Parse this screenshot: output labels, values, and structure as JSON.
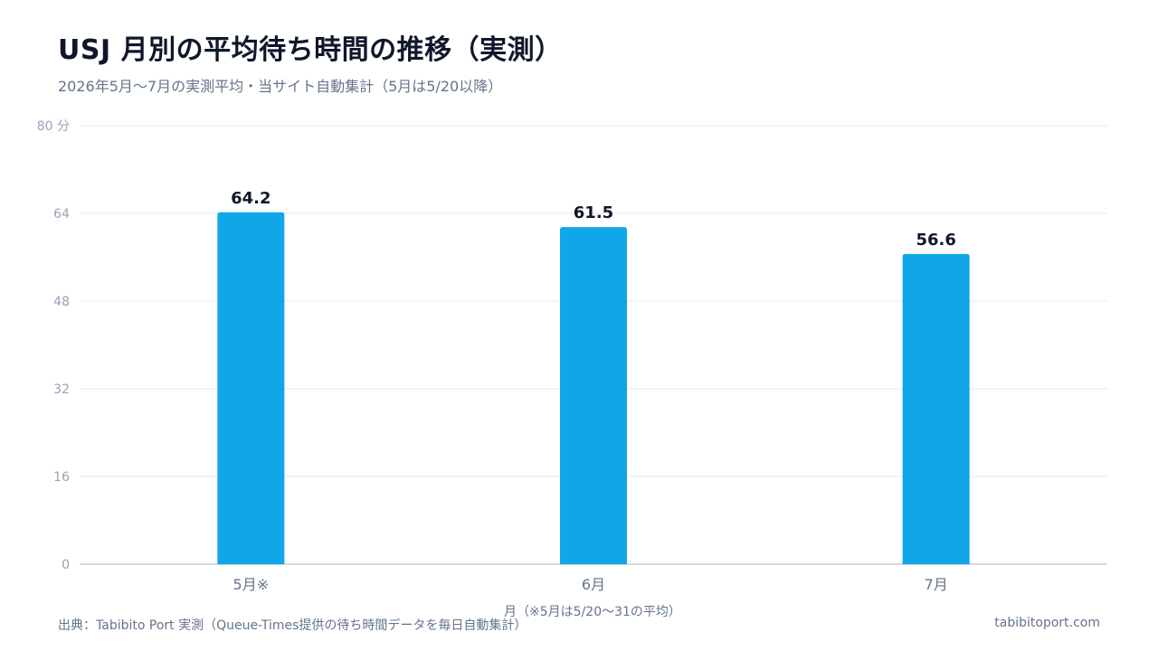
{
  "header": {
    "title": "USJ 月別の平均待ち時間の推移（実測）",
    "subtitle": "2026年5月〜7月の実測平均・当サイト自動集計（5月は5/20以降）"
  },
  "footer": {
    "source": "出典：Tabibito Port 実測（Queue-Times提供の待ち時間データを毎日自動集計）",
    "site": "tabibitoport.com"
  },
  "chart_data": {
    "type": "bar",
    "categories": [
      "5月※",
      "6月",
      "7月"
    ],
    "values": [
      64.2,
      61.5,
      56.6
    ],
    "data_labels": [
      "64.2",
      "61.5",
      "56.6"
    ],
    "xlabel": "月（※5月は5/20〜31の平均）",
    "ylim": [
      0,
      80
    ],
    "yticks": [
      0,
      16,
      32,
      48,
      64,
      80
    ],
    "ytick_labels": [
      "0",
      "16",
      "32",
      "48",
      "64",
      "80 分"
    ],
    "grid": true,
    "colors": {
      "bar": "#10a6e8",
      "grid": "#e5e9ef",
      "axis": "#c6ccd8",
      "tick_text": "#94a3b8",
      "category_text": "#64748b",
      "data_label": "#0f172a"
    }
  }
}
